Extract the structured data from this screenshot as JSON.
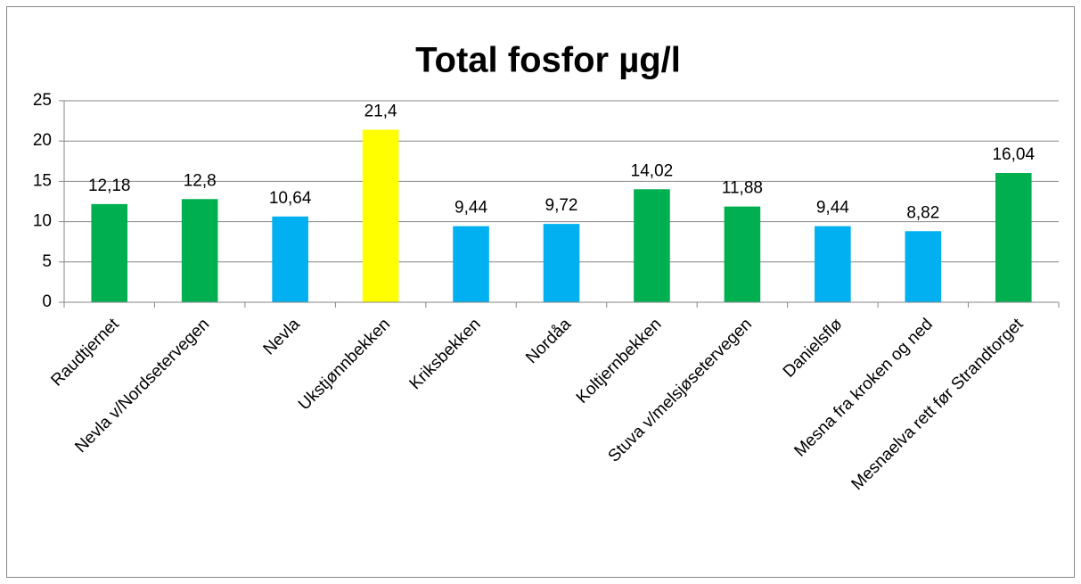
{
  "chart_data": {
    "type": "bar",
    "title": "Total fosfor µg/l",
    "categories": [
      "Raudtjernet",
      "Nevla v/Nordsetervegen",
      "Nevla",
      "Ukstjønnbekken",
      "Kriksbekken",
      "Nordåa",
      "Koltjernbekken",
      "Stuva v/melsjøsetervegen",
      "Danielsflø",
      "Mesna fra kroken og ned",
      "Mesnaelva rett før Strandtorget"
    ],
    "values": [
      12.18,
      12.8,
      10.64,
      21.4,
      9.44,
      9.72,
      14.02,
      11.88,
      9.44,
      8.82,
      16.04
    ],
    "value_labels": [
      "12,18",
      "12,8",
      "10,64",
      "21,4",
      "9,44",
      "9,72",
      "14,02",
      "11,88",
      "9,44",
      "8,82",
      "16,04"
    ],
    "colors": [
      "#00b050",
      "#00b050",
      "#00b0f0",
      "#ffff00",
      "#00b0f0",
      "#00b0f0",
      "#00b050",
      "#00b050",
      "#00b0f0",
      "#00b0f0",
      "#00b050"
    ],
    "ylim": [
      0,
      25
    ],
    "yticks": [
      0,
      5,
      10,
      15,
      20,
      25
    ],
    "grid": true
  }
}
